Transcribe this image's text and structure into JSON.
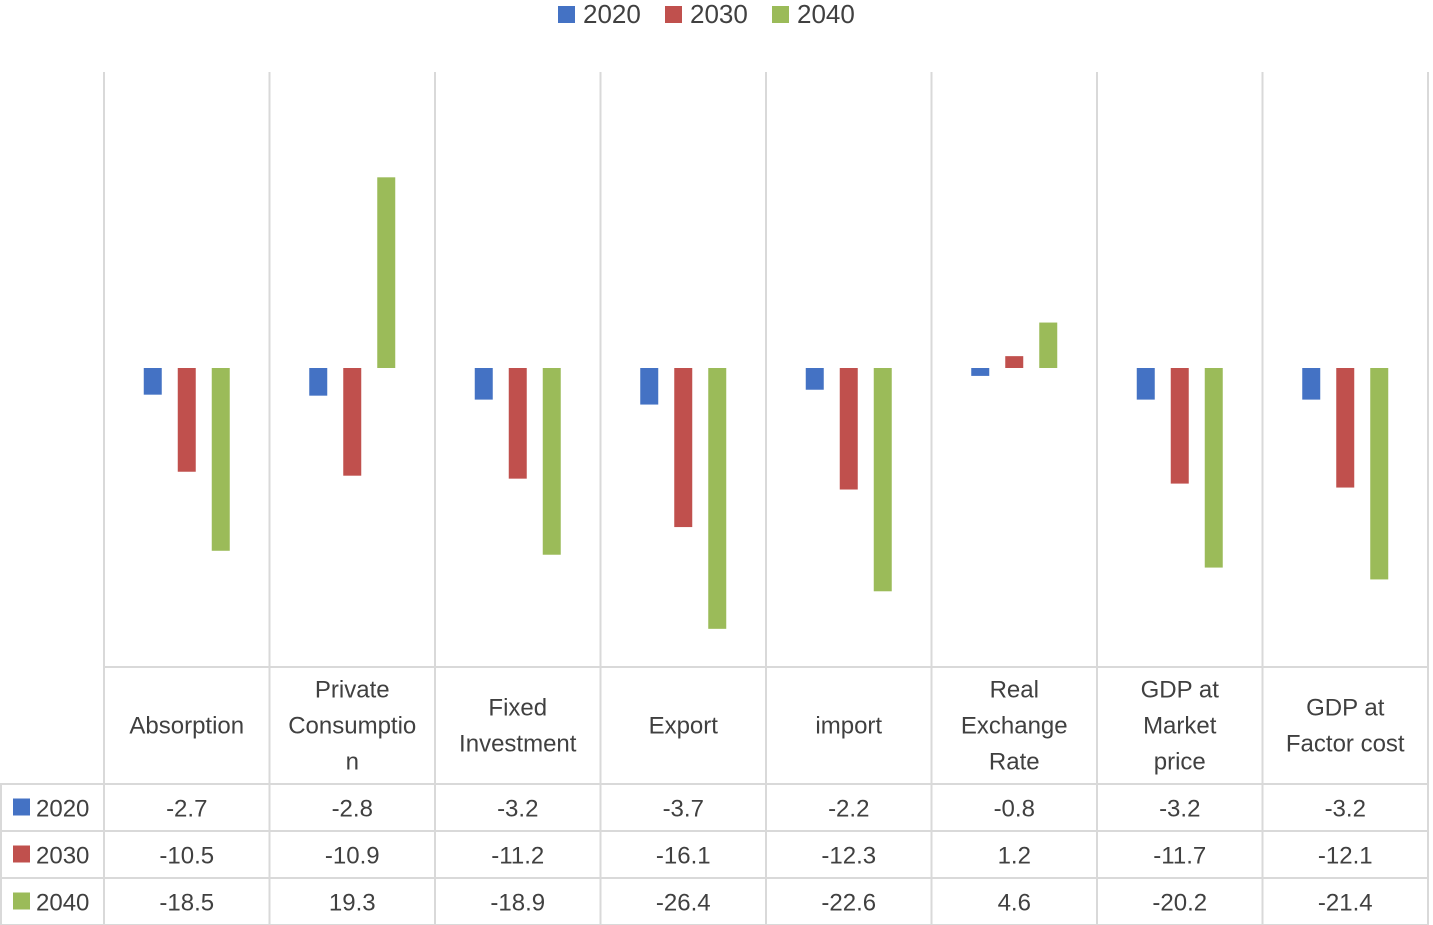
{
  "chart_data": {
    "type": "bar",
    "title": "",
    "xlabel": "",
    "ylabel": "",
    "categories": [
      [
        "Absorption"
      ],
      [
        "Private",
        "Consumptio",
        "n"
      ],
      [
        "Fixed",
        "Investment"
      ],
      [
        "Export"
      ],
      [
        "import"
      ],
      [
        "Real",
        "Exchange",
        "Rate"
      ],
      [
        "GDP at",
        "Market",
        "price"
      ],
      [
        "GDP at",
        "Factor cost"
      ]
    ],
    "series": [
      {
        "name": "2020",
        "color": "#4472C4",
        "values": [
          -2.7,
          -2.8,
          -3.2,
          -3.7,
          -2.2,
          -0.8,
          -3.2,
          -3.2
        ],
        "labels": [
          "-2.7",
          "-2.8",
          "-3.2",
          "-3.7",
          "-2.2",
          "-0.8",
          "-3.2",
          "-3.2"
        ]
      },
      {
        "name": "2030",
        "color": "#C0504D",
        "values": [
          -10.5,
          -10.9,
          -11.2,
          -16.1,
          -12.3,
          1.2,
          -11.7,
          -12.1
        ],
        "labels": [
          "-10.5",
          "-10.9",
          "-11.2",
          "-16.1",
          "-12.3",
          "1.2",
          "-11.7",
          "-12.1"
        ]
      },
      {
        "name": "2040",
        "color": "#9BBB59",
        "values": [
          -18.5,
          19.3,
          -18.9,
          -26.4,
          -22.6,
          4.6,
          -20.2,
          -21.4
        ],
        "labels": [
          "-18.5",
          "19.3",
          "-18.9",
          "-26.4",
          "-22.6",
          "4.6",
          "-20.2",
          "-21.4"
        ]
      }
    ],
    "ylim": [
      -30,
      30
    ],
    "grid": false,
    "legend": "top-center",
    "data_table": true
  }
}
